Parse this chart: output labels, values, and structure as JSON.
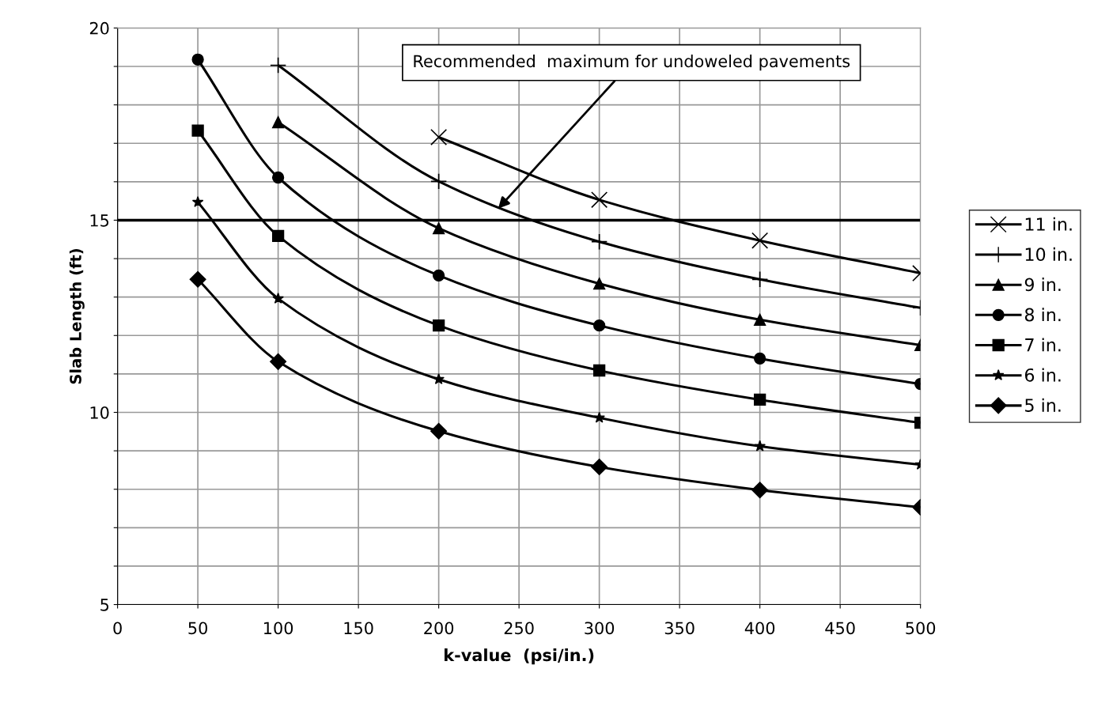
{
  "chart_data": {
    "type": "line",
    "xlabel": "k-value  (psi/in.)",
    "ylabel": "Slab Length (ft)",
    "x": [
      50,
      100,
      200,
      300,
      400,
      500
    ],
    "series": [
      {
        "name": "11 in.",
        "color": "#000000",
        "marker": "cross",
        "values": [
          null,
          null,
          17.16,
          15.53,
          14.47,
          13.62
        ]
      },
      {
        "name": "10 in.",
        "color": "#000000",
        "marker": "plus",
        "values": [
          null,
          19.03,
          16.01,
          14.44,
          13.46,
          12.72
        ]
      },
      {
        "name": "9 in.",
        "color": "#000000",
        "marker": "triangle",
        "values": [
          null,
          17.55,
          14.79,
          13.35,
          12.41,
          11.75
        ]
      },
      {
        "name": "8 in.",
        "color": "#000000",
        "marker": "circle",
        "values": [
          19.18,
          16.11,
          13.56,
          12.26,
          11.4,
          10.74
        ]
      },
      {
        "name": "7 in.",
        "color": "#000000",
        "marker": "square",
        "values": [
          17.33,
          14.59,
          12.26,
          11.09,
          10.33,
          9.73
        ]
      },
      {
        "name": "6 in.",
        "color": "#000000",
        "marker": "star",
        "values": [
          15.47,
          12.96,
          10.86,
          9.86,
          9.12,
          8.64
        ]
      },
      {
        "name": "5 in.",
        "color": "#000000",
        "marker": "diamond",
        "values": [
          13.46,
          11.32,
          9.51,
          8.58,
          7.98,
          7.53
        ]
      }
    ],
    "xlim": [
      0,
      500
    ],
    "xticks": [
      0,
      50,
      100,
      150,
      200,
      250,
      300,
      350,
      400,
      450,
      500
    ],
    "ylim": [
      5,
      20
    ],
    "yticks": [
      5,
      {
        "value": 6,
        "label": null
      },
      {
        "value": 7,
        "label": null
      },
      {
        "value": 8,
        "label": null
      },
      {
        "value": 9,
        "label": null
      },
      10,
      {
        "value": 11,
        "label": null
      },
      {
        "value": 12,
        "label": null
      },
      {
        "value": 13,
        "label": null
      },
      {
        "value": 14,
        "label": null
      },
      15,
      {
        "value": 16,
        "label": null
      },
      {
        "value": 17,
        "label": null
      },
      {
        "value": 18,
        "label": null
      },
      {
        "value": 19,
        "label": null
      },
      20
    ],
    "ref_lines": [
      {
        "axis": "y",
        "value": 15,
        "color": "#000000",
        "line_style": "solid"
      }
    ],
    "annotations": [
      {
        "text": "Recommended  maximum for undoweled pavements",
        "x": 237,
        "y": 15.3
      }
    ],
    "grid": true,
    "legend": "right",
    "line_style": "solid"
  }
}
